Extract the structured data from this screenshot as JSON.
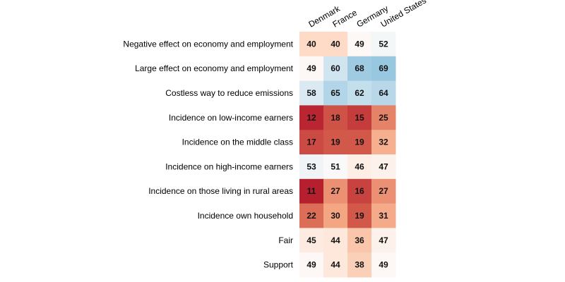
{
  "chart_data": {
    "type": "heatmap",
    "columns": [
      "Denmark",
      "France",
      "Germany",
      "United States"
    ],
    "rows": [
      "Negative effect on economy and employment",
      "Large effect on economy and employment",
      "Costless way to reduce emissions",
      "Incidence on low-income earners",
      "Incidence on the middle class",
      "Incidence on high-income earners",
      "Incidence on those living in rural areas",
      "Incidence own household",
      "Fair",
      "Support"
    ],
    "values": [
      [
        40,
        40,
        49,
        52
      ],
      [
        49,
        60,
        68,
        69
      ],
      [
        58,
        65,
        62,
        64
      ],
      [
        12,
        18,
        15,
        25
      ],
      [
        17,
        19,
        19,
        32
      ],
      [
        53,
        51,
        46,
        47
      ],
      [
        11,
        27,
        16,
        27
      ],
      [
        22,
        30,
        19,
        31
      ],
      [
        45,
        44,
        36,
        47
      ],
      [
        49,
        44,
        38,
        49
      ]
    ],
    "color_scale": {
      "type": "diverging",
      "min": 0,
      "mid": 50,
      "max": 100,
      "low_color": "#b2182b",
      "mid_color": "#ffffff",
      "high_color": "#2166ac"
    },
    "grid": false,
    "legend": "none"
  }
}
